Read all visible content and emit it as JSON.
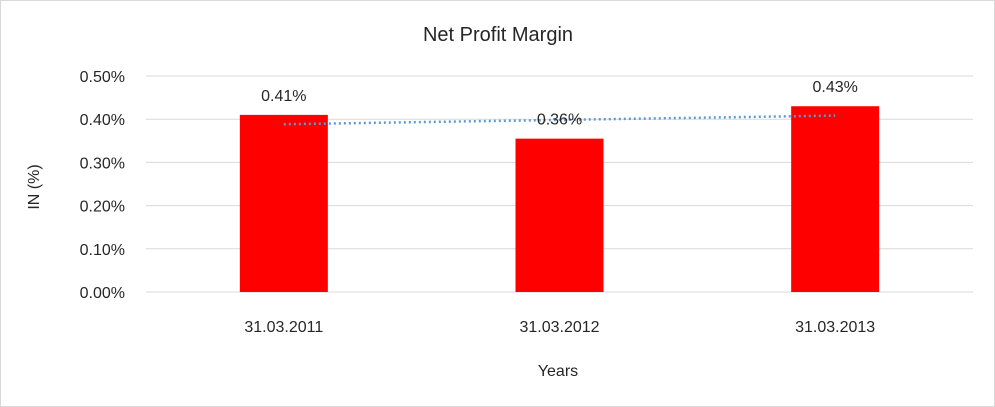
{
  "chart_data": {
    "type": "bar",
    "title": "Net Profit Margin",
    "xlabel": "Years",
    "ylabel": "IN (%)",
    "categories": [
      "31.03.2011",
      "31.03.2012",
      "31.03.2013"
    ],
    "values": [
      0.41,
      0.355,
      0.43
    ],
    "data_labels": [
      "0.41%",
      "0.36%",
      "0.43%"
    ],
    "ylim": [
      0,
      0.5
    ],
    "yticks": [
      0.0,
      0.1,
      0.2,
      0.3,
      0.4,
      0.5
    ],
    "ytick_labels": [
      "0.00%",
      "0.10%",
      "0.20%",
      "0.30%",
      "0.40%",
      "0.50%"
    ],
    "bar_color": "#ff0000",
    "trendline": {
      "type": "linear",
      "style": "dotted",
      "color": "#5b9bd5"
    },
    "gridlines": true,
    "legend": "none"
  }
}
